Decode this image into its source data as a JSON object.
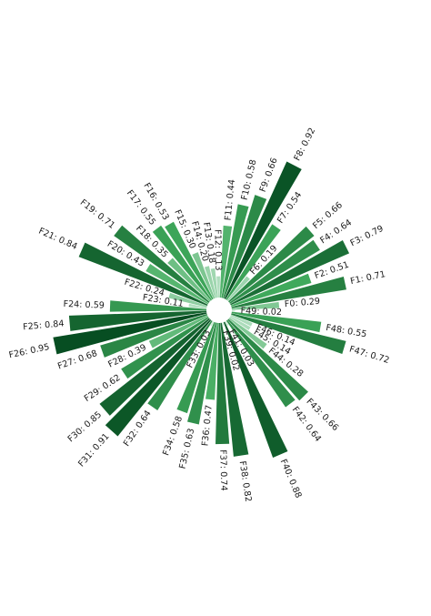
{
  "chart_data": {
    "type": "bar",
    "subtype": "radial",
    "title": "",
    "categories": [
      "F0",
      "F1",
      "F2",
      "F3",
      "F4",
      "F5",
      "F6",
      "F7",
      "F8",
      "F9",
      "F10",
      "F11",
      "F12",
      "F13",
      "F14",
      "F15",
      "F16",
      "F17",
      "F18",
      "F19",
      "F20",
      "F21",
      "F22",
      "F23",
      "F24",
      "F25",
      "F26",
      "F27",
      "F28",
      "F29",
      "F30",
      "F31",
      "F32",
      "F33",
      "F34",
      "F35",
      "F36",
      "F37",
      "F38",
      "F39",
      "F40",
      "F41",
      "F42",
      "F43",
      "F44",
      "F45",
      "F46",
      "F47",
      "F48",
      "F49"
    ],
    "values": [
      0.29,
      0.71,
      0.51,
      0.79,
      0.64,
      0.66,
      0.19,
      0.54,
      0.92,
      0.66,
      0.58,
      0.44,
      0.13,
      0.18,
      0.2,
      0.3,
      0.53,
      0.55,
      0.35,
      0.71,
      0.43,
      0.84,
      0.24,
      0.11,
      0.59,
      0.84,
      0.95,
      0.68,
      0.39,
      0.62,
      0.85,
      0.91,
      0.64,
      0.03,
      0.58,
      0.63,
      0.47,
      0.74,
      0.82,
      0.02,
      0.88,
      0.03,
      0.64,
      0.66,
      0.28,
      0.14,
      0.14,
      0.72,
      0.55,
      0.02
    ],
    "labels": [
      "F0: 0.29",
      "F1: 0.71",
      "F2: 0.51",
      "F3: 0.79",
      "F4: 0.64",
      "F5: 0.66",
      "F6: 0.19",
      "F7: 0.54",
      "F8: 0.92",
      "F9: 0.66",
      "F10: 0.58",
      "F11: 0.44",
      "F12: 0.13",
      "F13: 0.18",
      "F14: 0.20",
      "F15: 0.30",
      "F16: 0.53",
      "F17: 0.55",
      "F18: 0.35",
      "F19: 0.71",
      "F20: 0.43",
      "F21: 0.84",
      "F22: 0.24",
      "F23: 0.11",
      "F24: 0.59",
      "F25: 0.84",
      "F26: 0.95",
      "F27: 0.68",
      "F28: 0.39",
      "F29: 0.62",
      "F30: 0.85",
      "F31: 0.91",
      "F32: 0.64",
      "F33: 0.03",
      "F34: 0.58",
      "F35: 0.63",
      "F36: 0.47",
      "F37: 0.74",
      "F38: 0.82",
      "F39: 0.02",
      "F40: 0.88",
      "F41: 0.03",
      "F42: 0.64",
      "F43: 0.66",
      "F44: 0.28",
      "F45: 0.14",
      "F46: 0.14",
      "F47: 0.72",
      "F48: 0.55",
      "F49: 0.02"
    ],
    "ylim": [
      0,
      1
    ],
    "grid": false,
    "colormap": "Greens",
    "color_light": "#d6efdf",
    "color_dark": "#00441b"
  }
}
